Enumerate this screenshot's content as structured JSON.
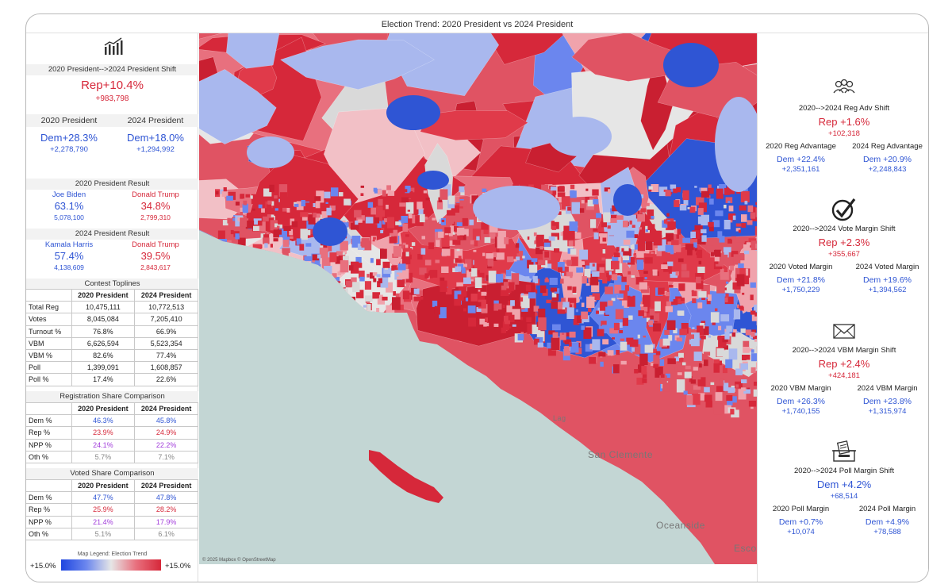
{
  "title": "Election Trend: 2020 President vs 2024 President",
  "left": {
    "shift_header": "2020 President-->2024 President Shift",
    "shift_value": "Rep+10.4%",
    "shift_votes": "+983,798",
    "col_2020": "2020 President",
    "col_2024": "2024 President",
    "margin_2020": "Dem+28.3%",
    "margin_2020_votes": "+2,278,790",
    "margin_2024": "Dem+18.0%",
    "margin_2024_votes": "+1,294,992",
    "result_2020_header": "2020 President Result",
    "r2020_dem_name": "Joe Biden",
    "r2020_dem_pct": "63.1%",
    "r2020_dem_votes": "5,078,100",
    "r2020_rep_name": "Donald Trump",
    "r2020_rep_pct": "34.8%",
    "r2020_rep_votes": "2,799,310",
    "result_2024_header": "2024 President Result",
    "r2024_dem_name": "Kamala Harris",
    "r2024_dem_pct": "57.4%",
    "r2024_dem_votes": "4,138,609",
    "r2024_rep_name": "Donald Trump",
    "r2024_rep_pct": "39.5%",
    "r2024_rep_votes": "2,843,617",
    "toplines_header": "Contest Toplines",
    "toplines_rows": [
      {
        "label": "Total Reg",
        "a": "10,475,111",
        "b": "10,772,513"
      },
      {
        "label": "Votes",
        "a": "8,045,084",
        "b": "7,205,410"
      },
      {
        "label": "Turnout %",
        "a": "76.8%",
        "b": "66.9%"
      },
      {
        "label": "VBM",
        "a": "6,626,594",
        "b": "5,523,354"
      },
      {
        "label": "VBM %",
        "a": "82.6%",
        "b": "77.4%"
      },
      {
        "label": "Poll",
        "a": "1,399,091",
        "b": "1,608,857"
      },
      {
        "label": "Poll %",
        "a": "17.4%",
        "b": "22.6%"
      }
    ],
    "reg_header": "Registration Share Comparison",
    "reg_rows": [
      {
        "label": "Dem %",
        "a": "46.3%",
        "b": "45.8%",
        "color": "#2f55d4"
      },
      {
        "label": "Rep %",
        "a": "23.9%",
        "b": "24.9%",
        "color": "#d6283a"
      },
      {
        "label": "NPP %",
        "a": "24.1%",
        "b": "22.2%",
        "color": "#a23ddb"
      },
      {
        "label": "Oth %",
        "a": "5.7%",
        "b": "7.1%",
        "color": "#888888"
      }
    ],
    "voted_header": "Voted Share Comparison",
    "voted_rows": [
      {
        "label": "Dem %",
        "a": "47.7%",
        "b": "47.8%",
        "color": "#2f55d4"
      },
      {
        "label": "Rep %",
        "a": "25.9%",
        "b": "28.2%",
        "color": "#d6283a"
      },
      {
        "label": "NPP %",
        "a": "21.4%",
        "b": "17.9%",
        "color": "#a23ddb"
      },
      {
        "label": "Oth %",
        "a": "5.1%",
        "b": "6.1%",
        "color": "#888888"
      }
    ],
    "legend_title": "Map Legend: Election Trend",
    "legend_left": "+15.0%",
    "legend_right": "+15.0%"
  },
  "map": {
    "attribution": "© 2025 Mapbox © OpenStreetMap",
    "places": [
      "Lag",
      "San Clemente",
      "Oceanside",
      "Esco"
    ]
  },
  "right": {
    "blocks": [
      {
        "icon": "people-icon",
        "title": "2020-->2024 Reg Adv Shift",
        "value": "Rep +1.6%",
        "value_class": "red",
        "votes": "+102,318",
        "votes_class": "red",
        "l_label": "2020 Reg Advantage",
        "l_value": "Dem +22.4%",
        "l_votes": "+2,351,161",
        "r_label": "2024 Reg Advantage",
        "r_value": "Dem +20.9%",
        "r_votes": "+2,248,843"
      },
      {
        "icon": "checkmark-icon",
        "title": "2020-->2024 Vote Margin Shift",
        "value": "Rep +2.3%",
        "value_class": "red",
        "votes": "+355,667",
        "votes_class": "red",
        "l_label": "2020 Voted Margin",
        "l_value": "Dem +21.8%",
        "l_votes": "+1,750,229",
        "r_label": "2024 Voted Margin",
        "r_value": "Dem +19.6%",
        "r_votes": "+1,394,562"
      },
      {
        "icon": "envelope-icon",
        "title": "2020-->2024 VBM Margin Shift",
        "value": "Rep +2.4%",
        "value_class": "red",
        "votes": "+424,181",
        "votes_class": "red",
        "l_label": "2020 VBM Margin",
        "l_value": "Dem +26.3%",
        "l_votes": "+1,740,155",
        "r_label": "2024 VBM Margin",
        "r_value": "Dem +23.8%",
        "r_votes": "+1,315,974"
      },
      {
        "icon": "ballot-box-icon",
        "title": "2020-->2024 Poll Margin Shift",
        "value": "Dem +4.2%",
        "value_class": "blue",
        "votes": "+68,514",
        "votes_class": "blue",
        "l_label": "2020 Poll Margin",
        "l_value": "Dem +0.7%",
        "l_votes": "+10,074",
        "r_label": "2024 Poll Margin",
        "r_value": "Dem +4.9%",
        "r_votes": "+78,588"
      }
    ]
  }
}
